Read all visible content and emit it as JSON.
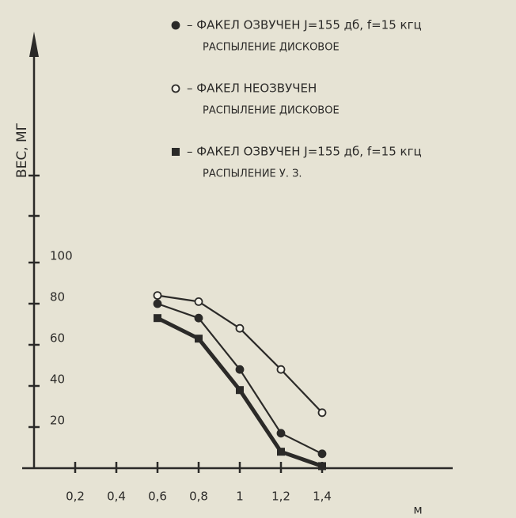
{
  "chart_data": {
    "type": "line",
    "y_label": "ВЕС, МГ",
    "x_label": "м",
    "xlim": [
      0,
      2
    ],
    "ylim": [
      0,
      210
    ],
    "xticks": [
      {
        "value": 0.2,
        "label": "0,2"
      },
      {
        "value": 0.4,
        "label": "0,4"
      },
      {
        "value": 0.6,
        "label": "0,6"
      },
      {
        "value": 0.8,
        "label": "0,8"
      },
      1,
      {
        "value": 1.2,
        "label": "1,2"
      },
      {
        "value": 1.4,
        "label": "1,4"
      }
    ],
    "yticks": [
      20,
      40,
      60,
      80,
      100
    ],
    "x": [
      0.6,
      0.8,
      1,
      1.2,
      1.4
    ],
    "series": [
      {
        "name": "– ФАКЕЛ ОЗВУЧЕН J=155 дб, f=15 кгц",
        "spray": "РАСПЫЛЕНИЕ ДИСКОВОЕ",
        "marker": "filled-circle",
        "color": "#2b2a28",
        "values": [
          80,
          73,
          48,
          17,
          7
        ]
      },
      {
        "name": "– ФАКЕЛ НЕОЗВУЧЕН",
        "spray": "РАСПЫЛЕНИЕ ДИСКОВОЕ",
        "marker": "open-circle",
        "color": "#2b2a28",
        "values": [
          84,
          81,
          68,
          48,
          27
        ]
      },
      {
        "name": "– ФАКЕЛ ОЗВУЧЕН J=155 дб, f=15 кгц",
        "spray": "РАСПЫЛЕНИЕ У. З.",
        "marker": "square",
        "color": "#2b2a28",
        "values": [
          73,
          63,
          38,
          8,
          1
        ]
      }
    ]
  }
}
